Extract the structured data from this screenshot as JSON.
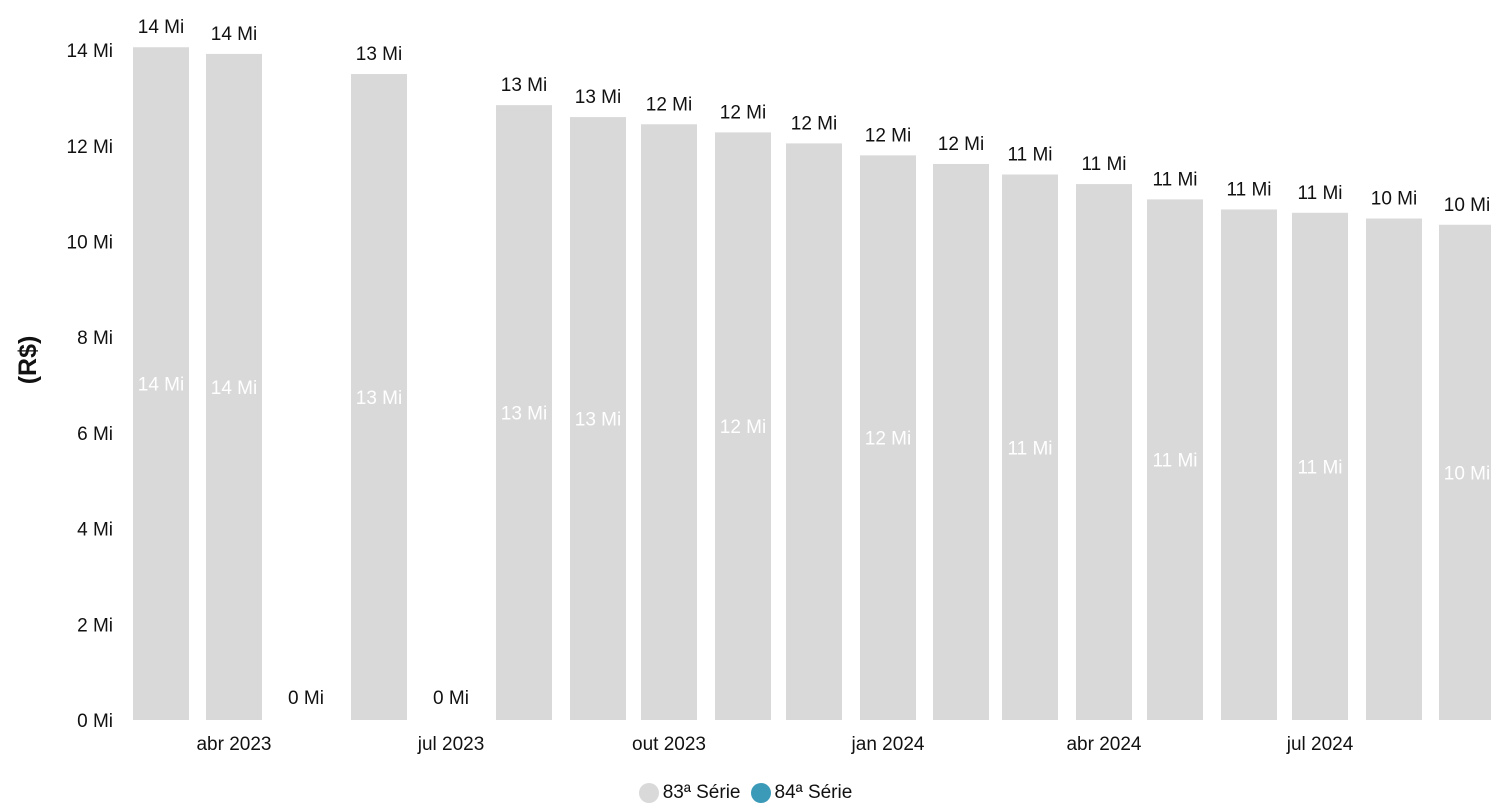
{
  "chart_data": {
    "type": "bar",
    "ylabel": "(R$)",
    "ylim": [
      0,
      14
    ],
    "y_tick_values": [
      0,
      2,
      4,
      6,
      8,
      10,
      12,
      14
    ],
    "y_tick_labels": [
      "0 Mi",
      "2 Mi",
      "4 Mi",
      "6 Mi",
      "8 Mi",
      "10 Mi",
      "12 Mi",
      "14 Mi"
    ],
    "x_tick_labels": [
      {
        "label": "abr 2023",
        "index": 1
      },
      {
        "label": "jul 2023",
        "index": 4
      },
      {
        "label": "out 2023",
        "index": 7
      },
      {
        "label": "jan 2024",
        "index": 10
      },
      {
        "label": "abr 2024",
        "index": 13
      },
      {
        "label": "jul 2024",
        "index": 16
      }
    ],
    "series": [
      {
        "name": "83ª Série",
        "color": "#d9d9d9",
        "values": [
          14.06,
          13.92,
          0,
          13.5,
          0,
          12.85,
          12.6,
          12.45,
          12.28,
          12.05,
          11.8,
          11.62,
          11.4,
          11.2,
          10.88,
          10.67,
          10.6,
          10.48,
          10.35
        ],
        "top_labels": [
          "14 Mi",
          "14 Mi",
          "0 Mi",
          "13 Mi",
          "0 Mi",
          "13 Mi",
          "13 Mi",
          "12 Mi",
          "12 Mi",
          "12 Mi",
          "12 Mi",
          "12 Mi",
          "11 Mi",
          "11 Mi",
          "11 Mi",
          "11 Mi",
          "11 Mi",
          "10 Mi",
          "10 Mi"
        ],
        "inner_labels": [
          "14 Mi",
          "14 Mi",
          "",
          "13 Mi",
          "",
          "13 Mi",
          "13 Mi",
          "",
          "12 Mi",
          "",
          "12 Mi",
          "",
          "11 Mi",
          "",
          "11 Mi",
          "",
          "11 Mi",
          "",
          "10 Mi"
        ]
      }
    ],
    "legend": [
      {
        "name": "83ª Série",
        "color": "#d9d9d9"
      },
      {
        "name": "84ª Série",
        "color": "#3a9ab8"
      }
    ],
    "legend_position": "bottom",
    "grid": false
  }
}
